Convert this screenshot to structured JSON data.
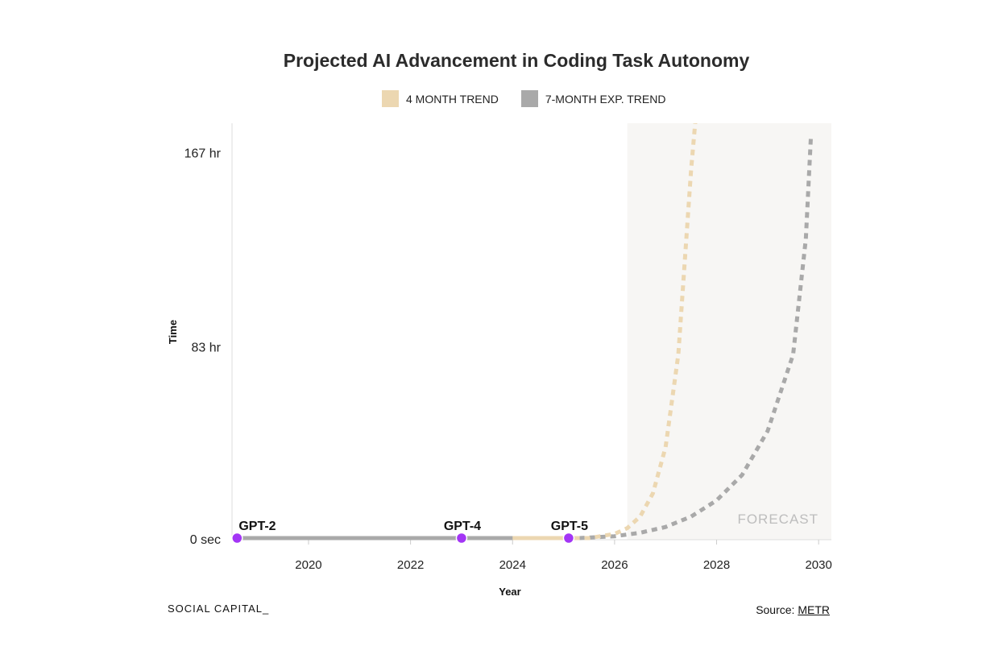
{
  "chart_data": {
    "type": "line",
    "title": "Projected AI Advancement in Coding Task Autonomy",
    "xlabel": "Year",
    "ylabel": "Time",
    "xlim": [
      2018.5,
      2030.25
    ],
    "ylim": [
      0,
      180
    ],
    "y_unit": "hr",
    "x_ticks": [
      "2020",
      "2022",
      "2024",
      "2026",
      "2028",
      "2030"
    ],
    "y_ticks": [
      {
        "value": 0,
        "label": "0 sec"
      },
      {
        "value": 83,
        "label": "83 hr"
      },
      {
        "value": 167,
        "label": "167 hr"
      }
    ],
    "legend": [
      {
        "label": "4 MONTH TREND",
        "color": "#ecd7b1"
      },
      {
        "label": "7-MONTH EXP. TREND",
        "color": "#a9a9a9"
      }
    ],
    "legend_position": "top-center",
    "forecast_region": {
      "start": 2026.25,
      "end": 2030.25,
      "label": "FORECAST"
    },
    "series": [
      {
        "name": "4 MONTH TREND",
        "color": "#ecd7b1",
        "points": [
          [
            2024.0,
            0.1
          ],
          [
            2025.0,
            0.25
          ],
          [
            2025.5,
            0.7
          ],
          [
            2026.0,
            2.5
          ],
          [
            2026.25,
            5
          ],
          [
            2026.5,
            10
          ],
          [
            2026.75,
            20
          ],
          [
            2027.0,
            40
          ],
          [
            2027.25,
            80
          ],
          [
            2027.5,
            160
          ],
          [
            2027.6,
            185
          ]
        ],
        "dashed_from": 2025.3
      },
      {
        "name": "7-MONTH EXP. TREND",
        "color": "#a9a9a9",
        "points": [
          [
            2018.6,
            0.01
          ],
          [
            2020.0,
            0.02
          ],
          [
            2022.0,
            0.05
          ],
          [
            2024.0,
            0.1
          ],
          [
            2025.3,
            0.3
          ],
          [
            2026.0,
            1.5
          ],
          [
            2026.5,
            3
          ],
          [
            2027.0,
            5.5
          ],
          [
            2027.5,
            10
          ],
          [
            2028.0,
            17
          ],
          [
            2028.5,
            28
          ],
          [
            2029.0,
            47
          ],
          [
            2029.5,
            80
          ],
          [
            2029.75,
            130
          ],
          [
            2029.85,
            175
          ]
        ],
        "dashed_from": 2025.3
      }
    ],
    "annotations": [
      {
        "label": "GPT-2",
        "x": 2018.6,
        "y": 0
      },
      {
        "label": "GPT-4",
        "x": 2023.0,
        "y": 0
      },
      {
        "label": "GPT-5",
        "x": 2025.1,
        "y": 0.3
      }
    ],
    "marker_color": "#a335f5"
  },
  "footer": {
    "brand": "SOCIAL CAPITAL_",
    "source_prefix": "Source: ",
    "source_name": "METR"
  }
}
